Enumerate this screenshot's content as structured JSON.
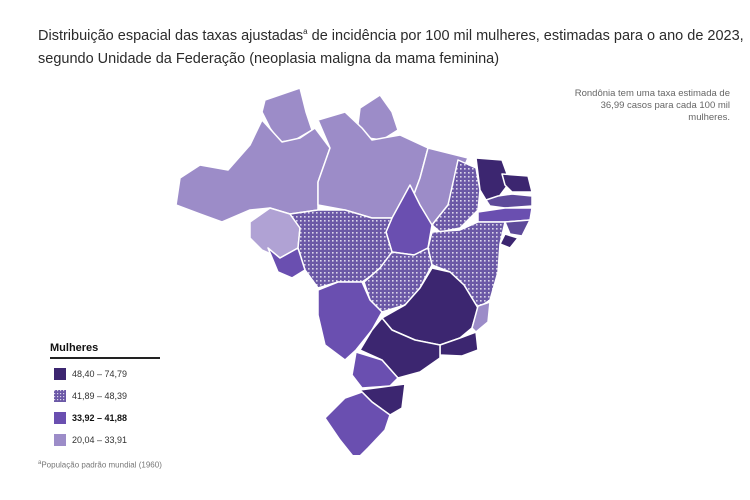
{
  "title": {
    "part1": "Distribuição espacial das taxas ajustadas",
    "superscript": "a",
    "part2": " de incidência por 100 mil mulheres, estimadas para o ano de 2023, segundo Unidade da Federação (neoplasia maligna da mama feminina)"
  },
  "callout": "Rondônia tem uma taxa estimada de 36,99 casos para cada 100 mil mulheres.",
  "legend": {
    "title": "Mulheres",
    "items": [
      {
        "label": "48,40 – 74,79",
        "color": "#3c2670",
        "pattern": "solid"
      },
      {
        "label": "41,89 – 48,39",
        "color": "#5e4a9a",
        "pattern": "dots"
      },
      {
        "label": "33,92 – 41,88",
        "color": "#6a4fb0",
        "pattern": "solid"
      },
      {
        "label": "20,04 – 33,91",
        "color": "#9c8cc8",
        "pattern": "solid"
      }
    ]
  },
  "footnote": {
    "superscript": "a",
    "text": "População padrão mundial (1960)"
  }
}
